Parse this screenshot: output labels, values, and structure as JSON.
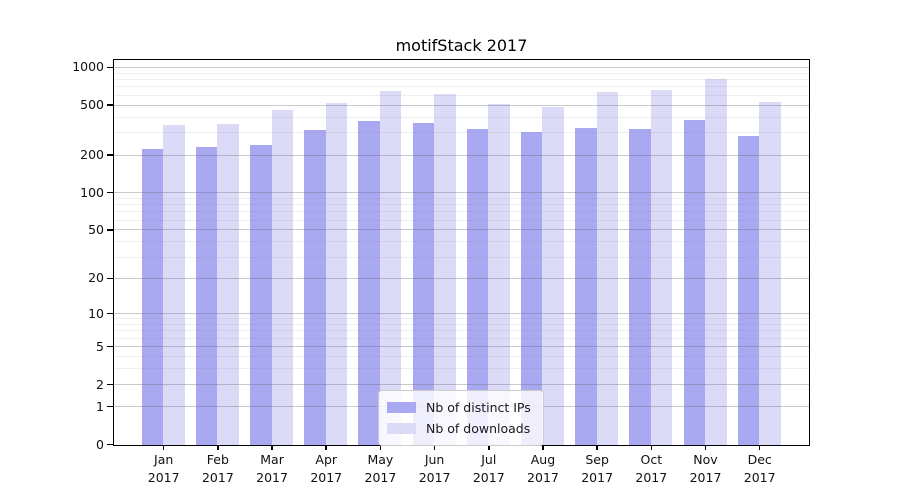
{
  "chart_data": {
    "type": "bar",
    "title": "motifStack 2017",
    "xlabel": "",
    "ylabel": "",
    "year": "2017",
    "months": [
      "Jan",
      "Feb",
      "Mar",
      "Apr",
      "May",
      "Jun",
      "Jul",
      "Aug",
      "Sep",
      "Oct",
      "Nov",
      "Dec"
    ],
    "categories": [
      "Jan 2017",
      "Feb 2017",
      "Mar 2017",
      "Apr 2017",
      "May 2017",
      "Jun 2017",
      "Jul 2017",
      "Aug 2017",
      "Sep 2017",
      "Oct 2017",
      "Nov 2017",
      "Dec 2017"
    ],
    "series": [
      {
        "name": "Nb of distinct IPs",
        "color": "#a9a9f2",
        "values": [
          227,
          235,
          243,
          320,
          377,
          366,
          326,
          310,
          330,
          326,
          384,
          286
        ]
      },
      {
        "name": "Nb of downloads",
        "color": "#dbdbf8",
        "values": [
          350,
          355,
          461,
          527,
          652,
          621,
          512,
          487,
          640,
          664,
          818,
          534
        ]
      }
    ],
    "yscale": "log1p",
    "ylim": [
      0,
      1135
    ],
    "y_ticks": [
      0,
      1,
      2,
      5,
      10,
      20,
      50,
      100,
      200,
      500,
      1000
    ],
    "y_minor_ticks": [
      3,
      4,
      6,
      7,
      8,
      9,
      30,
      40,
      60,
      70,
      80,
      90,
      300,
      400,
      600,
      700,
      800,
      900
    ],
    "grid": "horizontal, drawn over bars",
    "legend_position": "inside bottom-center",
    "colors": {
      "major_grid": "#c9c9cf",
      "minor_grid": "#ececf0",
      "spine": "#000000",
      "background": "#ffffff"
    }
  }
}
